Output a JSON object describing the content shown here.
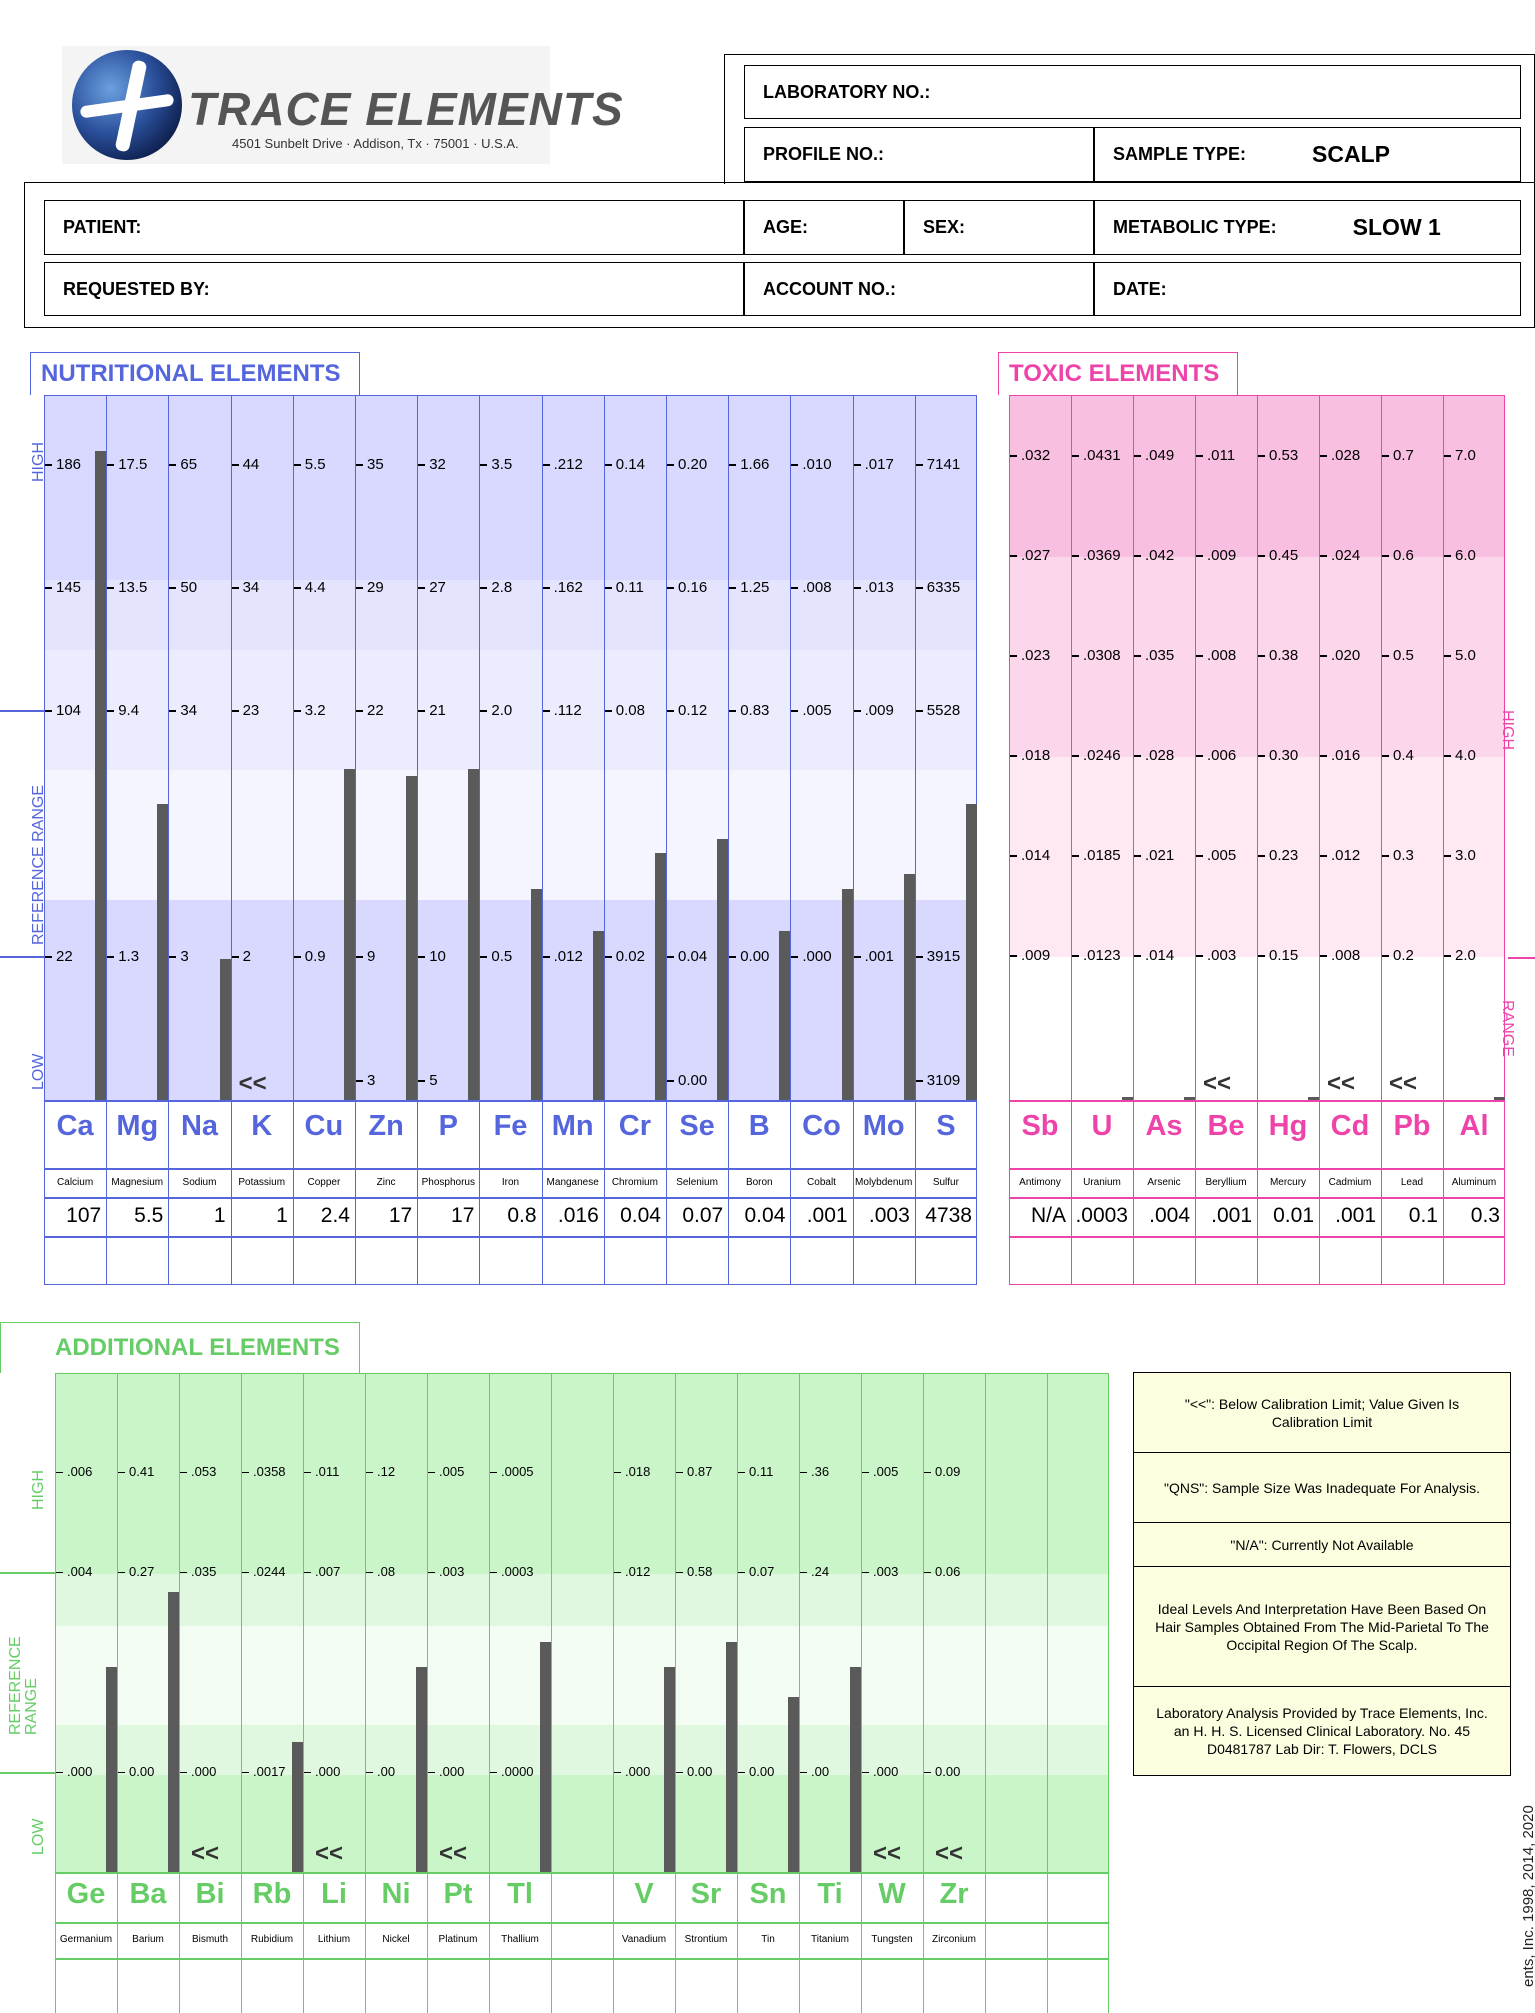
{
  "header": {
    "brand": "TRACE ELEMENTS",
    "address": "4501 Sunbelt Drive · Addison, Tx · 75001 · U.S.A.",
    "lab_no": "LABORATORY NO.:",
    "profile_no": "PROFILE NO.:",
    "sample_type_label": "SAMPLE TYPE:",
    "sample_type": "SCALP",
    "patient": "PATIENT:",
    "age": "AGE:",
    "sex": "SEX:",
    "metabolic_label": "METABOLIC TYPE:",
    "metabolic": "SLOW 1",
    "requested_by": "REQUESTED BY:",
    "account_no": "ACCOUNT NO.:",
    "date": "DATE:"
  },
  "nutritional": {
    "title": "NUTRITIONAL  ELEMENTS",
    "color": "#5566dd",
    "side_labels": {
      "high": "HIGH",
      "ref": "REFERENCE  RANGE",
      "low": "LOW"
    },
    "elements": [
      {
        "sym": "Ca",
        "name": "Calcium",
        "value": "107",
        "ticks": [
          "186",
          "145",
          "104",
          "22"
        ],
        "low": "",
        "bar": 0.92,
        "below": false
      },
      {
        "sym": "Mg",
        "name": "Magnesium",
        "value": "5.5",
        "ticks": [
          "17.5",
          "13.5",
          "9.4",
          "1.3"
        ],
        "low": "",
        "bar": 0.42,
        "below": false
      },
      {
        "sym": "Na",
        "name": "Sodium",
        "value": "1",
        "ticks": [
          "65",
          "50",
          "34",
          "3"
        ],
        "low": "",
        "bar": 0.2,
        "below": false
      },
      {
        "sym": "K",
        "name": "Potassium",
        "value": "1",
        "ticks": [
          "44",
          "34",
          "23",
          "2"
        ],
        "low": "",
        "bar": 0,
        "below": true
      },
      {
        "sym": "Cu",
        "name": "Copper",
        "value": "2.4",
        "ticks": [
          "5.5",
          "4.4",
          "3.2",
          "0.9"
        ],
        "low": "",
        "bar": 0.47,
        "below": false
      },
      {
        "sym": "Zn",
        "name": "Zinc",
        "value": "17",
        "ticks": [
          "35",
          "29",
          "22",
          "9"
        ],
        "low": "3",
        "bar": 0.46,
        "below": false
      },
      {
        "sym": "P",
        "name": "Phosphorus",
        "value": "17",
        "ticks": [
          "32",
          "27",
          "21",
          "10"
        ],
        "low": "5",
        "bar": 0.47,
        "below": false
      },
      {
        "sym": "Fe",
        "name": "Iron",
        "value": "0.8",
        "ticks": [
          "3.5",
          "2.8",
          "2.0",
          "0.5"
        ],
        "low": "",
        "bar": 0.3,
        "below": false
      },
      {
        "sym": "Mn",
        "name": "Manganese",
        "value": ".016",
        "ticks": [
          ".212",
          ".162",
          ".112",
          ".012"
        ],
        "low": "",
        "bar": 0.24,
        "below": false
      },
      {
        "sym": "Cr",
        "name": "Chromium",
        "value": "0.04",
        "ticks": [
          "0.14",
          "0.11",
          "0.08",
          "0.02"
        ],
        "low": "",
        "bar": 0.35,
        "below": false
      },
      {
        "sym": "Se",
        "name": "Selenium",
        "value": "0.07",
        "ticks": [
          "0.20",
          "0.16",
          "0.12",
          "0.04"
        ],
        "low": "0.00",
        "bar": 0.37,
        "below": false
      },
      {
        "sym": "B",
        "name": "Boron",
        "value": "0.04",
        "ticks": [
          "1.66",
          "1.25",
          "0.83",
          "0.00"
        ],
        "low": "",
        "bar": 0.24,
        "below": false
      },
      {
        "sym": "Co",
        "name": "Cobalt",
        "value": ".001",
        "ticks": [
          ".010",
          ".008",
          ".005",
          ".000"
        ],
        "low": "",
        "bar": 0.3,
        "below": false
      },
      {
        "sym": "Mo",
        "name": "Molybdenum",
        "value": ".003",
        "ticks": [
          ".017",
          ".013",
          ".009",
          ".001"
        ],
        "low": "",
        "bar": 0.32,
        "below": false
      },
      {
        "sym": "S",
        "name": "Sulfur",
        "value": "4738",
        "ticks": [
          "7141",
          "6335",
          "5528",
          "3915"
        ],
        "low": "3109",
        "bar": 0.42,
        "below": false
      }
    ]
  },
  "toxic": {
    "title": "TOXIC  ELEMENTS",
    "color": "#ee44aa",
    "side_labels": {
      "high": "HIGH",
      "range": "RANGE"
    },
    "elements": [
      {
        "sym": "Sb",
        "name": "Antimony",
        "value": "N/A",
        "ticks": [
          ".032",
          ".027",
          ".023",
          ".018",
          ".014",
          ".009"
        ],
        "bar": 0,
        "below": false
      },
      {
        "sym": "U",
        "name": "Uranium",
        "value": ".0003",
        "ticks": [
          ".0431",
          ".0369",
          ".0308",
          ".0246",
          ".0185",
          ".0123"
        ],
        "bar": 0.004,
        "below": false
      },
      {
        "sym": "As",
        "name": "Arsenic",
        "value": ".004",
        "ticks": [
          ".049",
          ".042",
          ".035",
          ".028",
          ".021",
          ".014"
        ],
        "bar": 0.004,
        "below": false
      },
      {
        "sym": "Be",
        "name": "Beryllium",
        "value": ".001",
        "ticks": [
          ".011",
          ".009",
          ".008",
          ".006",
          ".005",
          ".003"
        ],
        "bar": 0,
        "below": true
      },
      {
        "sym": "Hg",
        "name": "Mercury",
        "value": "0.01",
        "ticks": [
          "0.53",
          "0.45",
          "0.38",
          "0.30",
          "0.23",
          "0.15"
        ],
        "bar": 0.004,
        "below": false
      },
      {
        "sym": "Cd",
        "name": "Cadmium",
        "value": ".001",
        "ticks": [
          ".028",
          ".024",
          ".020",
          ".016",
          ".012",
          ".008"
        ],
        "bar": 0,
        "below": true
      },
      {
        "sym": "Pb",
        "name": "Lead",
        "value": "0.1",
        "ticks": [
          "0.7",
          "0.6",
          "0.5",
          "0.4",
          "0.3",
          "0.2"
        ],
        "bar": 0,
        "below": true
      },
      {
        "sym": "Al",
        "name": "Aluminum",
        "value": "0.3",
        "ticks": [
          "7.0",
          "6.0",
          "5.0",
          "4.0",
          "3.0",
          "2.0"
        ],
        "bar": 0.004,
        "below": false
      }
    ]
  },
  "additional": {
    "title": "ADDITIONAL  ELEMENTS",
    "color": "#66cc66",
    "side_labels": {
      "high": "HIGH",
      "ref": "REFERENCE RANGE",
      "low": "LOW"
    },
    "elements": [
      {
        "sym": "Ge",
        "name": "Germanium",
        "ticks": [
          ".006",
          ".004",
          ".000"
        ],
        "bar": 0.41,
        "below": false
      },
      {
        "sym": "Ba",
        "name": "Barium",
        "ticks": [
          "0.41",
          "0.27",
          "0.00"
        ],
        "bar": 0.56,
        "below": false
      },
      {
        "sym": "Bi",
        "name": "Bismuth",
        "ticks": [
          ".053",
          ".035",
          ".000"
        ],
        "bar": 0,
        "below": true
      },
      {
        "sym": "Rb",
        "name": "Rubidium",
        "ticks": [
          ".0358",
          ".0244",
          ".0017"
        ],
        "bar": 0.26,
        "below": false
      },
      {
        "sym": "Li",
        "name": "Lithium",
        "ticks": [
          ".011",
          ".007",
          ".000"
        ],
        "bar": 0,
        "below": true
      },
      {
        "sym": "Ni",
        "name": "Nickel",
        "ticks": [
          ".12",
          ".08",
          ".00"
        ],
        "bar": 0.41,
        "below": false
      },
      {
        "sym": "Pt",
        "name": "Platinum",
        "ticks": [
          ".005",
          ".003",
          ".000"
        ],
        "bar": 0,
        "below": true
      },
      {
        "sym": "Tl",
        "name": "Thallium",
        "ticks": [
          ".0005",
          ".0003",
          ".0000"
        ],
        "bar": 0.46,
        "below": false
      },
      {
        "sym": "",
        "name": "",
        "ticks": [],
        "bar": 0,
        "below": false
      },
      {
        "sym": "V",
        "name": "Vanadium",
        "ticks": [
          ".018",
          ".012",
          ".000"
        ],
        "bar": 0.41,
        "below": false
      },
      {
        "sym": "Sr",
        "name": "Strontium",
        "ticks": [
          "0.87",
          "0.58",
          "0.00"
        ],
        "bar": 0.46,
        "below": false
      },
      {
        "sym": "Sn",
        "name": "Tin",
        "ticks": [
          "0.11",
          "0.07",
          "0.00"
        ],
        "bar": 0.35,
        "below": false
      },
      {
        "sym": "Ti",
        "name": "Titanium",
        "ticks": [
          ".36",
          ".24",
          ".00"
        ],
        "bar": 0.41,
        "below": false
      },
      {
        "sym": "W",
        "name": "Tungsten",
        "ticks": [
          ".005",
          ".003",
          ".000"
        ],
        "bar": 0,
        "below": true
      },
      {
        "sym": "Zr",
        "name": "Zirconium",
        "ticks": [
          "0.09",
          "0.06",
          "0.00"
        ],
        "bar": 0,
        "below": true
      },
      {
        "sym": "",
        "name": "",
        "ticks": [],
        "bar": 0,
        "below": false
      },
      {
        "sym": "",
        "name": "",
        "ticks": [],
        "bar": 0,
        "below": false
      }
    ]
  },
  "below_marker": "<<",
  "legend": [
    "\"<<\": Below Calibration Limit; Value Given Is Calibration Limit",
    "\"QNS\": Sample Size Was Inadequate For Analysis.",
    "\"N/A\": Currently Not Available",
    "Ideal Levels And Interpretation Have Been Based On Hair Samples Obtained From The Mid-Parietal To The Occipital Region Of The Scalp.",
    "Laboratory Analysis Provided by Trace Elements, Inc. an H. H. S. Licensed Clinical Laboratory. No. 45 D0481787  Lab Dir: T. Flowers, DCLS"
  ],
  "copyright": "ents, Inc. 1998, 2014, 2020"
}
